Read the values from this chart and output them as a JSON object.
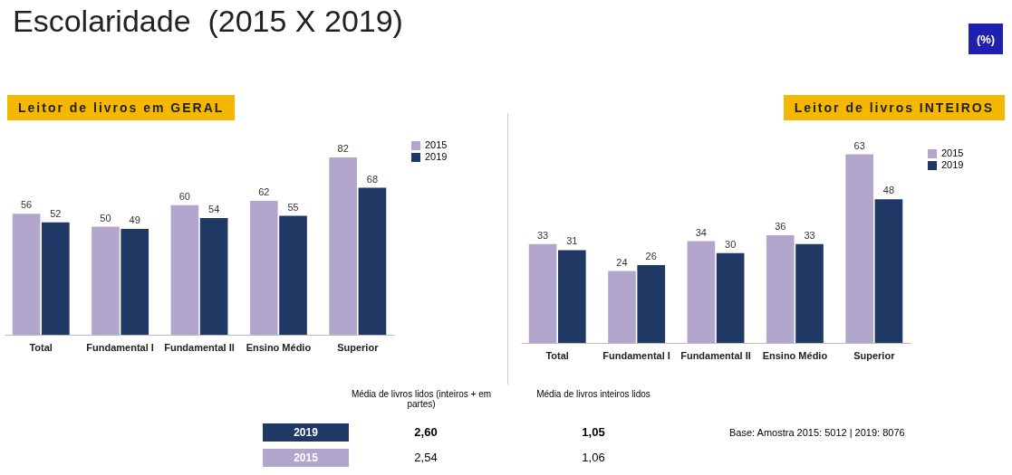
{
  "chart_data": [
    {
      "type": "bar",
      "title": "Escolaridade  (2015 X 2019)",
      "subtitle": "Leitor de livros em GERAL",
      "annotations": [
        "(%)"
      ],
      "categories": [
        "Total",
        "Fundamental I",
        "Fundamental II",
        "Ensino Médio",
        "Superior"
      ],
      "series": [
        {
          "name": "2015",
          "color": "#b3a6cc",
          "values": [
            56,
            50,
            60,
            62,
            82
          ]
        },
        {
          "name": "2019",
          "color": "#1f3864",
          "values": [
            52,
            49,
            54,
            55,
            68
          ]
        }
      ],
      "data_labels": true,
      "legend": "top right",
      "grid": false
    },
    {
      "type": "bar",
      "subtitle": "Leitor de livros INTEIROS",
      "categories": [
        "Total",
        "Fundamental I",
        "Fundamental II",
        "Ensino Médio",
        "Superior"
      ],
      "series": [
        {
          "name": "2015",
          "color": "#b3a6cc",
          "values": [
            33,
            24,
            34,
            36,
            63
          ]
        },
        {
          "name": "2019",
          "color": "#1f3864",
          "values": [
            31,
            26,
            30,
            33,
            48
          ]
        }
      ],
      "data_labels": true,
      "legend": "top right",
      "grid": false
    },
    {
      "type": "other",
      "annotations": [
        "Média de livros lidos (inteiros + em partes)",
        "Média de livros inteiros lidos",
        "2019",
        "2,60",
        "1,05",
        "2015",
        "2,54",
        "1,06",
        "Base: Amostra 2015: 5012 | 2019: 8076"
      ]
    }
  ]
}
